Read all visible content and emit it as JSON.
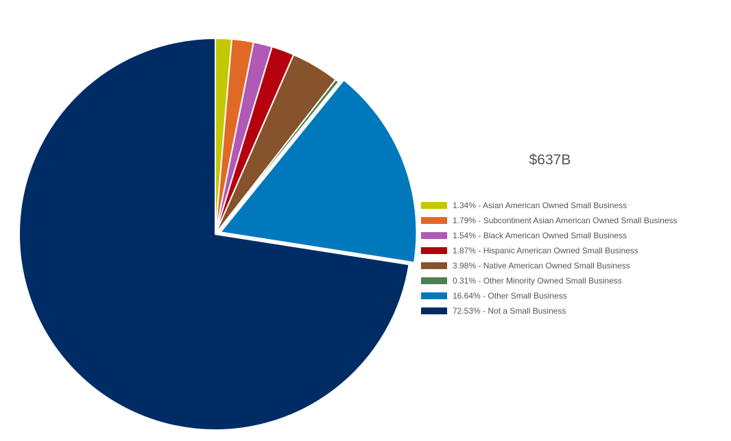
{
  "chart_data": {
    "type": "pie",
    "total_label": "$637B",
    "start_angle_deg": 0,
    "direction": "clockwise",
    "slices": [
      {
        "label": "1.34% - Asian American Owned Small Business",
        "value": 1.34,
        "color": "#c3c800"
      },
      {
        "label": "1.79% - Subcontinent Asian American Owned Small Business",
        "value": 1.79,
        "color": "#e06a25"
      },
      {
        "label": "1.54% - Black American Owned Small Business",
        "value": 1.54,
        "color": "#b05ab5"
      },
      {
        "label": "1.87% - Hispanic American Owned Small Business",
        "value": 1.87,
        "color": "#b5000e"
      },
      {
        "label": "3.98% - Native American Owned Small Business",
        "value": 3.98,
        "color": "#87532c"
      },
      {
        "label": "0.31% - Other Minority Owned Small Business",
        "value": 0.31,
        "color": "#4c7f52"
      },
      {
        "label": "16.64% - Other Small Business",
        "value": 16.64,
        "color": "#0079bc"
      },
      {
        "label": "72.53% - Not a Small Business",
        "value": 72.53,
        "color": "#002c65"
      }
    ],
    "exploded": [
      "16.64% - Other Small Business"
    ],
    "legend_position": "right"
  }
}
